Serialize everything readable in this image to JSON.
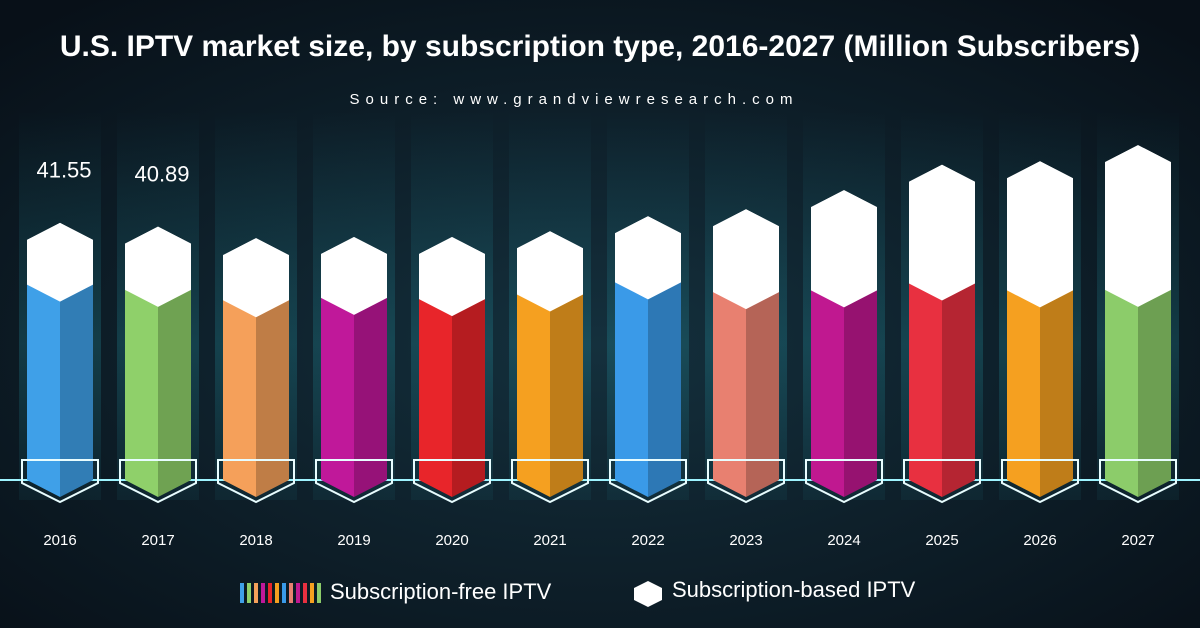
{
  "chart_data": {
    "type": "stacked-pillar",
    "title": "U.S. IPTV market size, by subscription type, 2016-2027 (Million Subscribers)",
    "subtitle": "Source:  www.grandviewresearch.com",
    "categories": [
      "2016",
      "2017",
      "2018",
      "2019",
      "2020",
      "2021",
      "2022",
      "2023",
      "2024",
      "2025",
      "2026",
      "2027"
    ],
    "series": [
      {
        "name": "Subscription-free IPTV",
        "colors": [
          "#3fa0e8",
          "#8fd06a",
          "#f5a05a",
          "#c0189a",
          "#e8252a",
          "#f5a020",
          "#3a9ae8",
          "#e88070",
          "#c01890",
          "#e83040",
          "#f5a020",
          "#8ccc6a"
        ],
        "values": [
          33.8,
          32.89,
          31.1,
          31.5,
          31.3,
          32.1,
          34.2,
          32.5,
          32.8,
          34.0,
          32.8,
          32.9
        ]
      },
      {
        "name": "Subscription-based IPTV",
        "color": "#ffffff",
        "values": [
          7.75,
          8.0,
          7.8,
          7.6,
          7.8,
          8.0,
          8.5,
          11.4,
          14.4,
          17.6,
          19.4,
          22.1
        ]
      }
    ],
    "totals": [
      41.55,
      40.89,
      null,
      null,
      null,
      null,
      null,
      null,
      null,
      null,
      null,
      null
    ]
  }
}
